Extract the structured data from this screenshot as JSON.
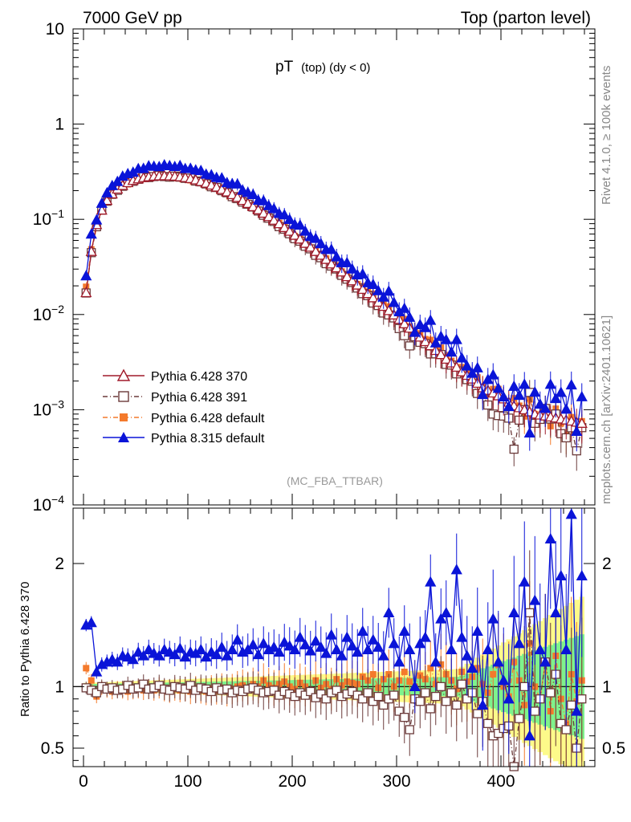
{
  "header": {
    "left_title": "7000 GeV pp",
    "right_title": "Top (parton level)"
  },
  "side_labels": {
    "rivet": "Rivet 4.1.0, ≥ 100k events",
    "mcplots": "mcplots.cern.ch [arXiv:2401.10621]"
  },
  "chart_data": [
    {
      "type": "line",
      "title_main": "pT",
      "title_sub": "(top) (dy < 0)",
      "analysis_label": "(MC_FBA_TTBAR)",
      "y_scale": "log",
      "ylim": [
        0.0001,
        10
      ],
      "xlim": [
        -10,
        490
      ],
      "y_tick_labels": [
        {
          "base": "10",
          "exp": "−4"
        },
        {
          "base": "10",
          "exp": "−3"
        },
        {
          "base": "10",
          "exp": "−2"
        },
        {
          "base": "10",
          "exp": "−1"
        },
        {
          "base": "1",
          "exp": ""
        },
        {
          "base": "10",
          "exp": ""
        }
      ],
      "legend_position": "lower-left",
      "x": [
        2.5,
        7.5,
        12.5,
        17.5,
        22.5,
        27.5,
        32.5,
        37.5,
        42.5,
        47.5,
        52.5,
        57.5,
        62.5,
        67.5,
        72.5,
        77.5,
        82.5,
        87.5,
        92.5,
        97.5,
        102.5,
        107.5,
        112.5,
        117.5,
        122.5,
        127.5,
        132.5,
        137.5,
        142.5,
        147.5,
        152.5,
        157.5,
        162.5,
        167.5,
        172.5,
        177.5,
        182.5,
        187.5,
        192.5,
        197.5,
        202.5,
        207.5,
        212.5,
        217.5,
        222.5,
        227.5,
        232.5,
        237.5,
        242.5,
        247.5,
        252.5,
        257.5,
        262.5,
        267.5,
        272.5,
        277.5,
        282.5,
        287.5,
        292.5,
        297.5,
        302.5,
        307.5,
        312.5,
        317.5,
        322.5,
        327.5,
        332.5,
        337.5,
        342.5,
        347.5,
        352.5,
        357.5,
        362.5,
        367.5,
        372.5,
        377.5,
        382.5,
        387.5,
        392.5,
        397.5,
        402.5,
        407.5,
        412.5,
        417.5,
        422.5,
        427.5,
        432.5,
        437.5,
        442.5,
        447.5,
        452.5,
        457.5,
        462.5,
        467.5,
        472.5,
        477.5
      ],
      "series": [
        {
          "name": "Pythia 6.428 370",
          "color": "#a01a2a",
          "marker": "triangle-open",
          "dash": "",
          "values": [
            0.017,
            0.046,
            0.088,
            0.125,
            0.158,
            0.185,
            0.208,
            0.227,
            0.243,
            0.256,
            0.266,
            0.274,
            0.28,
            0.284,
            0.286,
            0.287,
            0.286,
            0.284,
            0.28,
            0.275,
            0.268,
            0.26,
            0.25,
            0.24,
            0.229,
            0.218,
            0.206,
            0.194,
            0.182,
            0.17,
            0.158,
            0.147,
            0.136,
            0.126,
            0.116,
            0.107,
            0.098,
            0.09,
            0.082,
            0.075,
            0.068,
            0.062,
            0.056,
            0.051,
            0.046,
            0.042,
            0.038,
            0.034,
            0.031,
            0.028,
            0.025,
            0.0226,
            0.0204,
            0.0184,
            0.0166,
            0.015,
            0.0135,
            0.0122,
            0.011,
            0.0099,
            0.0089,
            0.008,
            0.0072,
            0.0065,
            0.0058,
            0.0052,
            0.0047,
            0.0042,
            0.0038,
            0.0034,
            0.0031,
            0.0028,
            0.0025,
            0.0023,
            0.0021,
            0.0019,
            0.0017,
            0.0016,
            0.0015,
            0.0014,
            0.0013,
            0.0012,
            0.0011,
            0.00105,
            0.001,
            0.00095,
            0.0009,
            0.00088,
            0.00086,
            0.00084,
            0.00082,
            0.0008,
            0.00078,
            0.00076,
            0.00074,
            0.00072
          ],
          "ratio": [
            1.0,
            1.0,
            1.0,
            1.0,
            1.0,
            1.0,
            1.0,
            1.0,
            1.0,
            1.0,
            1.0,
            1.0,
            1.0,
            1.0,
            1.0,
            1.0,
            1.0,
            1.0,
            1.0,
            1.0,
            1.0,
            1.0,
            1.0,
            1.0,
            1.0,
            1.0,
            1.0,
            1.0,
            1.0,
            1.0,
            1.0,
            1.0,
            1.0,
            1.0,
            1.0,
            1.0,
            1.0,
            1.0,
            1.0,
            1.0,
            1.0,
            1.0,
            1.0,
            1.0,
            1.0,
            1.0,
            1.0,
            1.0,
            1.0,
            1.0,
            1.0,
            1.0,
            1.0,
            1.0,
            1.0,
            1.0,
            1.0,
            1.0,
            1.0,
            1.0,
            1.0,
            1.0,
            1.0,
            1.0,
            1.0,
            1.0,
            1.0,
            1.0,
            1.0,
            1.0,
            1.0,
            1.0,
            1.0,
            1.0,
            1.0,
            1.0,
            1.0,
            1.0,
            1.0,
            1.0,
            1.0,
            1.0,
            1.0,
            1.0,
            1.0,
            1.0,
            1.0,
            1.0,
            1.0,
            1.0,
            1.0,
            1.0,
            1.0,
            1.0,
            1.0,
            1.0
          ]
        },
        {
          "name": "Pythia 6.428 391",
          "color": "#6b3a3a",
          "marker": "square-open",
          "dash": "6,3,1,3",
          "ratio": [
            0.99,
            0.97,
            0.95,
            1.0,
            0.98,
            0.99,
            0.97,
            0.98,
            1.01,
            0.98,
            0.99,
            1.02,
            0.98,
            0.99,
            1.01,
            0.98,
            0.97,
            1.0,
            0.99,
            0.98,
            1.01,
            0.97,
            0.99,
            0.98,
            0.96,
            0.99,
            0.97,
            0.98,
            0.95,
            0.97,
            0.96,
            0.98,
            0.99,
            0.97,
            0.95,
            0.96,
            0.97,
            0.93,
            0.96,
            0.94,
            0.92,
            0.95,
            0.93,
            0.96,
            0.91,
            0.94,
            0.9,
            0.95,
            0.97,
            0.92,
            0.94,
            0.96,
            0.93,
            0.9,
            0.95,
            0.88,
            0.92,
            0.85,
            0.9,
            0.93,
            0.8,
            0.75,
            0.65,
            0.9,
            0.88,
            0.95,
            0.82,
            0.92,
            1.0,
            0.88,
            0.95,
            0.85,
            1.02,
            0.9,
            0.95,
            0.78,
            0.88,
            0.7,
            0.6,
            0.62,
            0.66,
            0.68,
            0.35,
            0.74,
            1.0,
            1.6,
            0.8,
            0.9,
            1.2,
            0.95,
            1.1,
            0.7,
            0.65,
            0.85,
            0.5,
            0.9
          ]
        },
        {
          "name": "Pythia 6.428 default",
          "color": "#f47a2c",
          "marker": "square-filled",
          "dash": "6,3,1,3",
          "ratio": [
            1.15,
            1.05,
            0.92,
            0.99,
            0.97,
            0.96,
            0.98,
            0.97,
            0.96,
            0.97,
            0.98,
            0.97,
            0.98,
            0.97,
            0.99,
            0.97,
            0.96,
            0.98,
            0.97,
            0.98,
            0.96,
            0.98,
            0.97,
            0.96,
            0.98,
            0.97,
            0.99,
            0.96,
            0.98,
            1.0,
            1.01,
            0.99,
            1.02,
            1.0,
            1.05,
            1.01,
            0.99,
            1.02,
            1.04,
            1.0,
            0.98,
            1.03,
            1.0,
            0.97,
            1.05,
            0.99,
            1.02,
            0.98,
            1.06,
            1.01,
            1.04,
            1.03,
            1.02,
            1.08,
            1.05,
            1.1,
            0.99,
            1.06,
            1.1,
            1.0,
            1.05,
            1.12,
            1.04,
            1.0,
            1.09,
            1.06,
            1.15,
            1.02,
            1.18,
            1.1,
            1.05,
            0.98,
            1.12,
            1.04,
            1.08,
            1.15,
            1.02,
            0.95,
            1.1,
            1.18,
            1.0,
            0.92,
            1.2,
            1.05,
            0.85,
            1.35,
            1.0,
            0.9,
            1.2,
            0.8,
            1.25,
            0.9,
            0.7,
            1.1,
            0.88,
            1.05
          ]
        },
        {
          "name": "Pythia 8.315 default",
          "color": "#0a14d8",
          "marker": "triangle-filled",
          "dash": "",
          "ratio": [
            1.5,
            1.52,
            1.12,
            1.18,
            1.2,
            1.22,
            1.2,
            1.25,
            1.24,
            1.22,
            1.28,
            1.25,
            1.3,
            1.27,
            1.25,
            1.3,
            1.28,
            1.26,
            1.31,
            1.24,
            1.28,
            1.27,
            1.3,
            1.24,
            1.28,
            1.26,
            1.32,
            1.25,
            1.3,
            1.38,
            1.28,
            1.3,
            1.34,
            1.26,
            1.35,
            1.3,
            1.32,
            1.28,
            1.36,
            1.33,
            1.3,
            1.4,
            1.34,
            1.29,
            1.37,
            1.32,
            1.27,
            1.42,
            1.3,
            1.25,
            1.4,
            1.33,
            1.28,
            1.45,
            1.3,
            1.38,
            1.32,
            1.25,
            1.6,
            1.35,
            1.2,
            1.45,
            1.3,
            1.0,
            1.35,
            1.4,
            1.85,
            1.2,
            1.55,
            1.6,
            1.3,
            1.95,
            1.4,
            1.25,
            1.15,
            1.45,
            0.85,
            1.3,
            1.55,
            1.2,
            1.05,
            0.9,
            1.6,
            1.35,
            1.85,
            0.6,
            1.7,
            1.3,
            1.2,
            2.2,
            1.6,
            1.9,
            1.3,
            2.4,
            0.8,
            1.9
          ]
        }
      ]
    },
    {
      "type": "line",
      "ylabel": "Ratio to Pythia 6.428 370",
      "ylim": [
        0.35,
        2.45
      ],
      "y_tick_labels": [
        "0.5",
        "1",
        "2"
      ],
      "x_tick_labels": [
        "0",
        "100",
        "200",
        "300",
        "400"
      ],
      "bands": [
        {
          "name": "green",
          "color": "#7ef28c"
        },
        {
          "name": "yellow",
          "color": "#fdfa8a"
        }
      ]
    }
  ]
}
